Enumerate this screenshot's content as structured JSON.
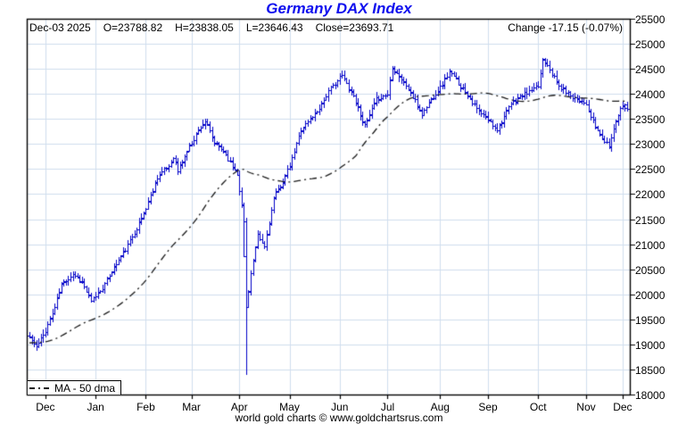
{
  "title": "Germany DAX Index",
  "header": {
    "date": "Dec-03  2025",
    "open": "O=23788.82",
    "high": "H=23838.05",
    "low": "L=23646.43",
    "close": "Close=23693.71",
    "change": "Change -17.15 (-0.07%)"
  },
  "footer": {
    "credit": "world gold charts © www.goldchartsrus.com"
  },
  "chart_data": {
    "type": "ohlc",
    "title": "Germany DAX Index",
    "last_bar": {
      "date": "Dec-03 2025",
      "open": 23788.82,
      "high": 23838.05,
      "low": 23646.43,
      "close": 23693.71,
      "change": -17.15,
      "change_pct": -0.07
    },
    "y_axis": {
      "min": 18000,
      "max": 25500,
      "step": 500,
      "tick_labels": [
        "25500",
        "25000",
        "24500",
        "24000",
        "23500",
        "23000",
        "22500",
        "22000",
        "21500",
        "21000",
        "20500",
        "20000",
        "19500",
        "19000",
        "18500",
        "18000"
      ]
    },
    "x_axis": {
      "month_labels": [
        "Dec",
        "Jan",
        "Feb",
        "Mar",
        "Apr",
        "May",
        "Jun",
        "Jul",
        "Aug",
        "Sep",
        "Oct",
        "Nov",
        "Dec"
      ],
      "month_start_days": [
        7,
        29,
        51,
        71,
        92,
        114,
        136,
        157,
        180,
        201,
        223,
        244,
        260
      ],
      "total_days": 263
    },
    "close_anchors": [
      [
        0,
        19150
      ],
      [
        3,
        18950
      ],
      [
        7,
        19280
      ],
      [
        11,
        19750
      ],
      [
        14,
        20200
      ],
      [
        19,
        20420
      ],
      [
        23,
        20250
      ],
      [
        27,
        19850
      ],
      [
        29,
        19980
      ],
      [
        33,
        20200
      ],
      [
        36,
        20480
      ],
      [
        42,
        20900
      ],
      [
        48,
        21420
      ],
      [
        51,
        21720
      ],
      [
        56,
        22350
      ],
      [
        61,
        22570
      ],
      [
        63,
        22760
      ],
      [
        65,
        22460
      ],
      [
        70,
        22960
      ],
      [
        75,
        23350
      ],
      [
        77,
        23460
      ],
      [
        81,
        23020
      ],
      [
        85,
        22870
      ],
      [
        89,
        22560
      ],
      [
        91,
        22420
      ],
      [
        93,
        21760
      ],
      [
        95,
        19750
      ],
      [
        97,
        20420
      ],
      [
        100,
        21160
      ],
      [
        103,
        20960
      ],
      [
        107,
        21920
      ],
      [
        111,
        22260
      ],
      [
        114,
        22560
      ],
      [
        119,
        23300
      ],
      [
        126,
        23660
      ],
      [
        131,
        24050
      ],
      [
        137,
        24380
      ],
      [
        142,
        23960
      ],
      [
        147,
        23360
      ],
      [
        152,
        23900
      ],
      [
        157,
        24000
      ],
      [
        159,
        24550
      ],
      [
        166,
        24100
      ],
      [
        172,
        23600
      ],
      [
        176,
        23900
      ],
      [
        181,
        24200
      ],
      [
        184,
        24450
      ],
      [
        191,
        24050
      ],
      [
        196,
        23700
      ],
      [
        205,
        23300
      ],
      [
        211,
        23800
      ],
      [
        215,
        23950
      ],
      [
        223,
        24150
      ],
      [
        225,
        24700
      ],
      [
        227,
        24600
      ],
      [
        232,
        24150
      ],
      [
        238,
        23950
      ],
      [
        243,
        23850
      ],
      [
        248,
        23350
      ],
      [
        252,
        23050
      ],
      [
        254,
        22960
      ],
      [
        257,
        23500
      ],
      [
        260,
        23800
      ],
      [
        262,
        23693.71
      ]
    ],
    "overrides": [
      {
        "day": 95,
        "open": 21450,
        "high": 21520,
        "low": 18400,
        "close": 19750
      },
      {
        "day": 262,
        "open": 23788.82,
        "high": 23838.05,
        "low": 23646.43,
        "close": 23693.71
      }
    ],
    "ma": {
      "label": "MA - 50 dma",
      "window": 50,
      "prehistory_start": 18900,
      "prehistory_end": 19150
    },
    "colors": {
      "bar": "#0000c8",
      "ma": "#1c1c1c",
      "grid": "#cfdeee",
      "border": "#000000",
      "title": "#1010ee",
      "background": "#ffffff"
    },
    "grid": true,
    "legend_position": "bottom-left"
  }
}
